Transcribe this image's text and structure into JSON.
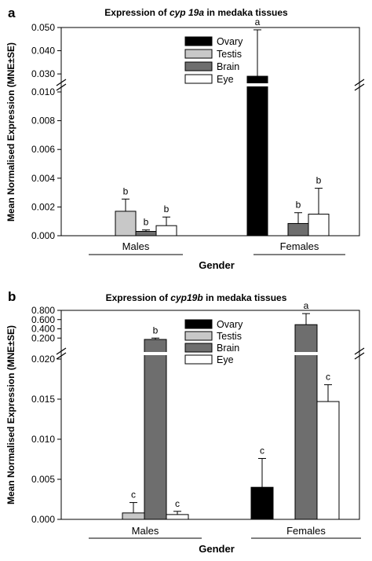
{
  "chart_data": [
    {
      "panel_label": "a",
      "type": "bar",
      "title_parts": [
        "Expression of ",
        "cyp 19a",
        " in medaka tissues"
      ],
      "xlabel": "Gender",
      "ylabel": "Mean Normalised Expression (MNE±SE)",
      "categories": [
        "Males",
        "Females"
      ],
      "legend_position": "top-right",
      "lower_ticks": [
        "0.000",
        "0.002",
        "0.004",
        "0.006",
        "0.008",
        "0.010"
      ],
      "upper_ticks": [
        "0.030",
        "0.040",
        "0.050"
      ],
      "axis_break": {
        "lower_max": 0.01,
        "upper_min": 0.028,
        "upper_max": 0.05
      },
      "series": [
        {
          "name": "Ovary",
          "color": "#000000",
          "values": [
            null,
            0.029
          ],
          "errors": [
            null,
            0.02
          ],
          "letters": [
            "",
            "a"
          ]
        },
        {
          "name": "Testis",
          "color": "#c8c8c8",
          "values": [
            0.0017,
            null
          ],
          "errors": [
            0.00085,
            null
          ],
          "letters": [
            "b",
            ""
          ]
        },
        {
          "name": "Brain",
          "color": "#6e6e6e",
          "values": [
            0.0003,
            0.00085
          ],
          "errors": [
            0.0001,
            0.00075
          ],
          "letters": [
            "b",
            "b"
          ]
        },
        {
          "name": "Eye",
          "color": "#ffffff",
          "values": [
            0.0007,
            0.0015
          ],
          "errors": [
            0.0006,
            0.0018
          ],
          "letters": [
            "b",
            "b"
          ]
        }
      ]
    },
    {
      "panel_label": "b",
      "type": "bar",
      "title_parts": [
        "Expression of ",
        "cyp19b",
        " in medaka tissues"
      ],
      "xlabel": "Gender",
      "ylabel": "Mean Normalised Expression (MNE±SE)",
      "categories": [
        "Males",
        "Females"
      ],
      "legend_position": "top-right",
      "lower_ticks": [
        "0.000",
        "0.005",
        "0.010",
        "0.015",
        "0.020"
      ],
      "upper_ticks": [
        "0.200",
        "0.400",
        "0.600",
        "0.800"
      ],
      "axis_break": {
        "lower_max": 0.02,
        "upper_min": 0.0,
        "upper_max": 0.8
      },
      "series": [
        {
          "name": "Ovary",
          "color": "#000000",
          "values": [
            null,
            0.004
          ],
          "errors": [
            null,
            0.0036
          ],
          "letters": [
            "",
            "c"
          ]
        },
        {
          "name": "Testis",
          "color": "#c8c8c8",
          "values": [
            0.0008,
            null
          ],
          "errors": [
            0.0013,
            null
          ],
          "letters": [
            "c",
            ""
          ]
        },
        {
          "name": "Brain",
          "color": "#6e6e6e",
          "values": [
            0.17,
            0.49
          ],
          "errors": [
            0.03,
            0.24
          ],
          "letters": [
            "b",
            "a"
          ]
        },
        {
          "name": "Eye",
          "color": "#ffffff",
          "values": [
            0.0006,
            0.0147
          ],
          "errors": [
            0.0004,
            0.0021
          ],
          "letters": [
            "c",
            "c"
          ]
        }
      ]
    }
  ]
}
